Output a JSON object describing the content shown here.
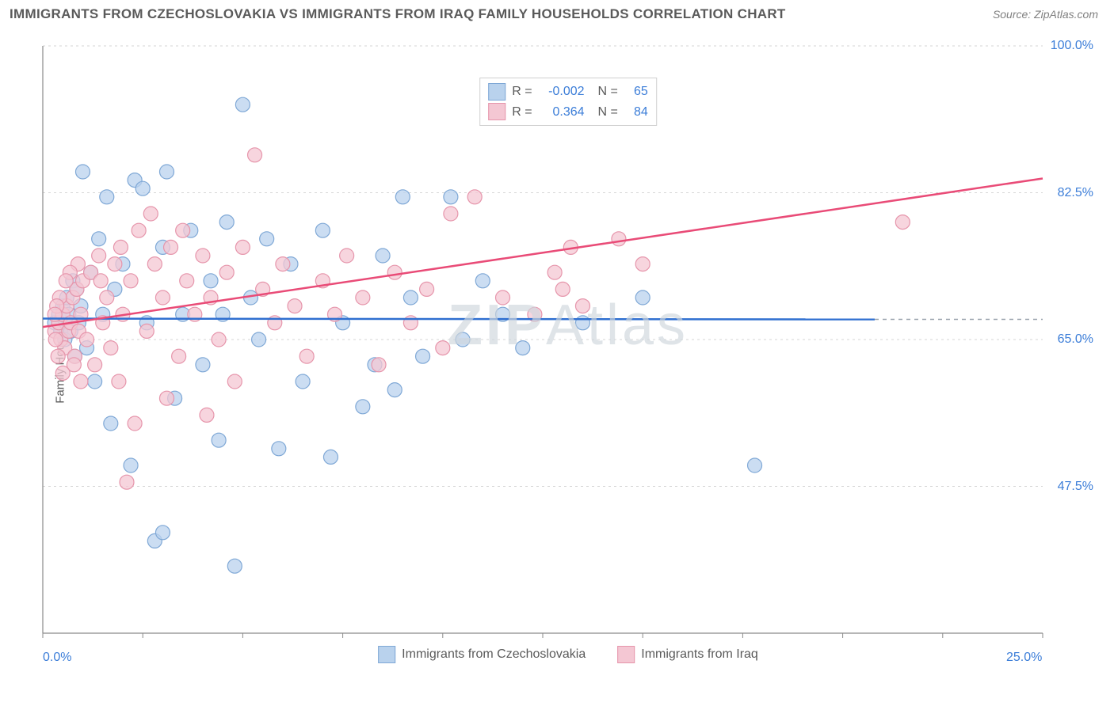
{
  "title": "IMMIGRANTS FROM CZECHOSLOVAKIA VS IMMIGRANTS FROM IRAQ FAMILY HOUSEHOLDS CORRELATION CHART",
  "source": "Source: ZipAtlas.com",
  "ylabel": "Family Households",
  "watermark_strong": "ZIP",
  "watermark_rest": "Atlas",
  "chart": {
    "type": "scatter",
    "xlim": [
      0,
      25
    ],
    "ylim": [
      30,
      100
    ],
    "x_ticks": [
      0,
      25
    ],
    "x_tick_labels": [
      "0.0%",
      "25.0%"
    ],
    "y_ticks": [
      47.5,
      65.0,
      82.5,
      100.0
    ],
    "y_tick_labels": [
      "47.5%",
      "65.0%",
      "82.5%",
      "100.0%"
    ],
    "grid_color": "#d6d6d6",
    "axis_color": "#8a8a8a",
    "tick_marks_x": [
      0,
      2.5,
      5,
      7.5,
      10,
      12.5,
      15,
      17.5,
      20,
      22.5,
      25
    ],
    "background": "#ffffff",
    "series": [
      {
        "name": "Immigrants from Czechoslovakia",
        "color_fill": "#b9d2ed",
        "color_stroke": "#7fa8d6",
        "r_line_color": "#2f6fd0",
        "R": "-0.002",
        "N": "65",
        "marker_radius": 9,
        "marker_opacity": 0.75,
        "regression": {
          "x1": 0,
          "y1": 67.5,
          "x2": 20.8,
          "y2": 67.4
        },
        "dash_extension": {
          "x1": 20.8,
          "y1": 67.4,
          "x2": 25,
          "y2": 67.4
        },
        "points": [
          [
            0.3,
            67
          ],
          [
            0.4,
            68
          ],
          [
            0.45,
            66
          ],
          [
            0.5,
            69
          ],
          [
            0.55,
            65
          ],
          [
            0.6,
            70
          ],
          [
            0.65,
            68
          ],
          [
            0.7,
            66
          ],
          [
            0.75,
            72
          ],
          [
            0.8,
            63
          ],
          [
            0.85,
            71
          ],
          [
            0.9,
            67
          ],
          [
            0.95,
            69
          ],
          [
            1.0,
            85
          ],
          [
            1.1,
            64
          ],
          [
            1.2,
            73
          ],
          [
            1.3,
            60
          ],
          [
            1.4,
            77
          ],
          [
            1.5,
            68
          ],
          [
            1.6,
            82
          ],
          [
            1.7,
            55
          ],
          [
            1.8,
            71
          ],
          [
            2.0,
            74
          ],
          [
            2.2,
            50
          ],
          [
            2.3,
            84
          ],
          [
            2.5,
            83
          ],
          [
            2.8,
            41
          ],
          [
            3.0,
            76
          ],
          [
            3.1,
            85
          ],
          [
            3.3,
            58
          ],
          [
            3.5,
            68
          ],
          [
            3.7,
            78
          ],
          [
            4.0,
            62
          ],
          [
            4.2,
            72
          ],
          [
            4.4,
            53
          ],
          [
            4.6,
            79
          ],
          [
            4.8,
            38
          ],
          [
            5.0,
            93
          ],
          [
            5.2,
            70
          ],
          [
            5.4,
            65
          ],
          [
            5.6,
            77
          ],
          [
            5.9,
            52
          ],
          [
            6.2,
            74
          ],
          [
            6.5,
            60
          ],
          [
            7.0,
            78
          ],
          [
            7.2,
            51
          ],
          [
            7.5,
            67
          ],
          [
            8.0,
            57
          ],
          [
            8.3,
            62
          ],
          [
            8.5,
            75
          ],
          [
            8.8,
            59
          ],
          [
            9.2,
            70
          ],
          [
            9.5,
            63
          ],
          [
            10.2,
            82
          ],
          [
            10.5,
            65
          ],
          [
            11.0,
            72
          ],
          [
            11.5,
            68
          ],
          [
            12.0,
            64
          ],
          [
            13.5,
            67
          ],
          [
            15.0,
            70
          ],
          [
            17.8,
            50
          ],
          [
            9.0,
            82
          ],
          [
            3.0,
            42
          ],
          [
            4.5,
            68
          ],
          [
            2.6,
            67
          ]
        ]
      },
      {
        "name": "Immigrants from Iraq",
        "color_fill": "#f4c7d3",
        "color_stroke": "#e695ab",
        "r_line_color": "#e94b77",
        "R": "0.364",
        "N": "84",
        "marker_radius": 9,
        "marker_opacity": 0.75,
        "regression": {
          "x1": 0,
          "y1": 66.5,
          "x2": 25,
          "y2": 84.2
        },
        "dash_extension": null,
        "points": [
          [
            0.3,
            66
          ],
          [
            0.4,
            67
          ],
          [
            0.45,
            65
          ],
          [
            0.5,
            68
          ],
          [
            0.55,
            64
          ],
          [
            0.6,
            69
          ],
          [
            0.65,
            66
          ],
          [
            0.7,
            67
          ],
          [
            0.75,
            70
          ],
          [
            0.8,
            63
          ],
          [
            0.85,
            71
          ],
          [
            0.9,
            66
          ],
          [
            0.95,
            68
          ],
          [
            1.0,
            72
          ],
          [
            1.1,
            65
          ],
          [
            1.2,
            73
          ],
          [
            1.3,
            62
          ],
          [
            1.4,
            75
          ],
          [
            1.5,
            67
          ],
          [
            1.6,
            70
          ],
          [
            1.7,
            64
          ],
          [
            1.8,
            74
          ],
          [
            1.9,
            60
          ],
          [
            2.0,
            68
          ],
          [
            2.1,
            48
          ],
          [
            2.2,
            72
          ],
          [
            2.4,
            78
          ],
          [
            2.6,
            66
          ],
          [
            2.8,
            74
          ],
          [
            3.0,
            70
          ],
          [
            3.2,
            76
          ],
          [
            3.4,
            63
          ],
          [
            3.6,
            72
          ],
          [
            3.8,
            68
          ],
          [
            4.0,
            75
          ],
          [
            4.2,
            70
          ],
          [
            4.4,
            65
          ],
          [
            4.6,
            73
          ],
          [
            4.8,
            60
          ],
          [
            5.0,
            76
          ],
          [
            5.3,
            87
          ],
          [
            5.5,
            71
          ],
          [
            5.8,
            67
          ],
          [
            6.0,
            74
          ],
          [
            6.3,
            69
          ],
          [
            6.6,
            63
          ],
          [
            7.0,
            72
          ],
          [
            7.3,
            68
          ],
          [
            7.6,
            75
          ],
          [
            8.0,
            70
          ],
          [
            8.4,
            62
          ],
          [
            8.8,
            73
          ],
          [
            9.2,
            67
          ],
          [
            9.6,
            71
          ],
          [
            10.0,
            64
          ],
          [
            10.2,
            80
          ],
          [
            10.8,
            82
          ],
          [
            11.5,
            70
          ],
          [
            12.3,
            68
          ],
          [
            12.8,
            73
          ],
          [
            13.0,
            71
          ],
          [
            13.2,
            76
          ],
          [
            13.5,
            69
          ],
          [
            14.4,
            77
          ],
          [
            15.0,
            74
          ],
          [
            21.5,
            79
          ],
          [
            2.3,
            55
          ],
          [
            3.1,
            58
          ],
          [
            4.1,
            56
          ],
          [
            3.5,
            78
          ],
          [
            2.7,
            80
          ],
          [
            1.95,
            76
          ],
          [
            1.45,
            72
          ],
          [
            0.95,
            60
          ],
          [
            0.88,
            74
          ],
          [
            0.78,
            62
          ],
          [
            0.68,
            73
          ],
          [
            0.58,
            72
          ],
          [
            0.5,
            61
          ],
          [
            0.42,
            70
          ],
          [
            0.38,
            63
          ],
          [
            0.35,
            69
          ],
          [
            0.32,
            65
          ],
          [
            0.3,
            68
          ]
        ]
      }
    ]
  }
}
